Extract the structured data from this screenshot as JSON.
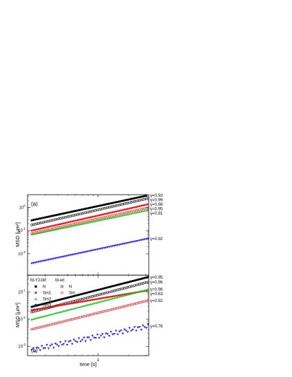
{
  "chart_data": [
    {
      "panel": "(a)",
      "type": "scatter",
      "xlabel": "time [s]",
      "ylabel": "MSD [μm²]",
      "xscale": "log",
      "yscale": "log",
      "xlim": [
        0.2,
        3.2
      ],
      "ylim": [
        0.0012,
        3.5
      ],
      "y_ticks": [
        {
          "value": 1,
          "base": "10",
          "exp": "0"
        },
        {
          "value": 0.1,
          "base": "10",
          "exp": "-1"
        },
        {
          "value": 0.01,
          "base": "10",
          "exp": "-2"
        }
      ],
      "grid": false,
      "series": [
        {
          "sample": "fd-Y21M",
          "phase": "N",
          "marker": "square-filled",
          "color": "#000000",
          "y_at_1s": 1.13,
          "exponent_label": "γ=0.93"
        },
        {
          "sample": "fd-wt",
          "phase": "N",
          "marker": "circle-open",
          "color": "#000000",
          "y_at_1s": 0.78,
          "exponent_label": "γ=0.99"
        },
        {
          "sample": "fd-Y21M",
          "phase": "Sm1",
          "marker": "circle-filled",
          "color": "#e8191b",
          "y_at_1s": 0.44,
          "exponent_label": "γ=0.98"
        },
        {
          "sample": "fd-wt",
          "phase": "Sm",
          "marker": "circle-open",
          "color": "#e8191b",
          "y_at_1s": 0.32,
          "exponent_label": "γ=0.95"
        },
        {
          "sample": "fd-Y21M",
          "phase": "Sm2",
          "marker": "triangle-up",
          "color": "#19c219",
          "y_at_1s": 0.27,
          "exponent_label": "γ=0.91"
        },
        {
          "sample": "fd-Y21M",
          "phase": "Sm3",
          "marker": "triangle-down",
          "color": "#1a1aeb",
          "y_at_1s": 0.0155,
          "exponent_label": "γ=0.92"
        }
      ]
    },
    {
      "panel": "(b)",
      "type": "scatter",
      "xlabel": "time [s]",
      "ylabel": "MSD [μm²]",
      "xscale": "log",
      "yscale": "log",
      "xlim": [
        0.2,
        3.2
      ],
      "ylim": [
        0.00045,
        0.42
      ],
      "x_ticks": [
        {
          "value": 1,
          "label": "1"
        }
      ],
      "y_ticks": [
        {
          "value": 0.1,
          "base": "10",
          "exp": "-1"
        },
        {
          "value": 0.01,
          "base": "10",
          "exp": "-2"
        },
        {
          "value": 0.001,
          "base": "10",
          "exp": "-3"
        }
      ],
      "grid": false,
      "legend": {
        "placement": "top-left",
        "group1_title": "fd-Y21M:",
        "group2_title": "fd-wt:",
        "group1": [
          "N",
          "Sm1",
          "Sm2",
          "Sm3"
        ],
        "group2": [
          "N",
          "Sm"
        ]
      },
      "series": [
        {
          "sample": "fd-Y21M",
          "phase": "N",
          "marker": "square-filled",
          "color": "#000000",
          "y_at_1s": 0.12,
          "exponent_label": "γ=0.95"
        },
        {
          "sample": "fd-wt",
          "phase": "N",
          "marker": "circle-open",
          "color": "#000000",
          "y_at_1s": 0.078,
          "exponent_label": "γ=0.96"
        },
        {
          "sample": "fd-Y21M",
          "phase": "Sm1",
          "marker": "circle-filled",
          "color": "#e8191b",
          "y_at_1s": 0.056,
          "exponent_label": "γ=0.63"
        },
        {
          "sample": "fd-Y21M",
          "phase": "Sm2",
          "marker": "triangle-up",
          "color": "#19c219",
          "y_at_1s": 0.042,
          "exponent_label": "γ=0.96"
        },
        {
          "sample": "fd-wt",
          "phase": "Sm",
          "marker": "circle-open",
          "color": "#e8191b",
          "y_at_1s": 0.017,
          "exponent_label": "γ=0.92"
        },
        {
          "sample": "fd-Y21M",
          "phase": "Sm3",
          "marker": "triangle-down",
          "color": "#1a1aeb",
          "y_at_1s": 0.0023,
          "exponent_label": "γ=0.76"
        }
      ]
    }
  ]
}
